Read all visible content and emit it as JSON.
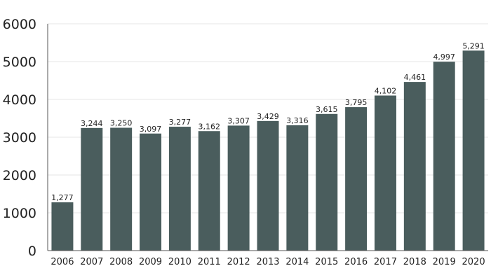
{
  "chart_data": {
    "type": "bar",
    "categories": [
      "2006",
      "2007",
      "2008",
      "2009",
      "2010",
      "2011",
      "2012",
      "2013",
      "2014",
      "2015",
      "2016",
      "2017",
      "2018",
      "2019",
      "2020"
    ],
    "values": [
      1277,
      3244,
      3250,
      3097,
      3277,
      3162,
      3307,
      3429,
      3316,
      3615,
      3795,
      4102,
      4461,
      4997,
      5291
    ],
    "data_labels": [
      "1,277",
      "3,244",
      "3,250",
      "3,097",
      "3,277",
      "3,162",
      "3,307",
      "3,429",
      "3,316",
      "3,615",
      "3,795",
      "4,102",
      "4,461",
      "4,997",
      "5,291"
    ],
    "y_ticks": [
      "0",
      "1000",
      "2000",
      "3000",
      "4000",
      "5000",
      "6000"
    ],
    "ylim": [
      0,
      6000
    ],
    "grid": true,
    "bar_color": "#4a5d5d",
    "title": "",
    "xlabel": "",
    "ylabel": ""
  }
}
